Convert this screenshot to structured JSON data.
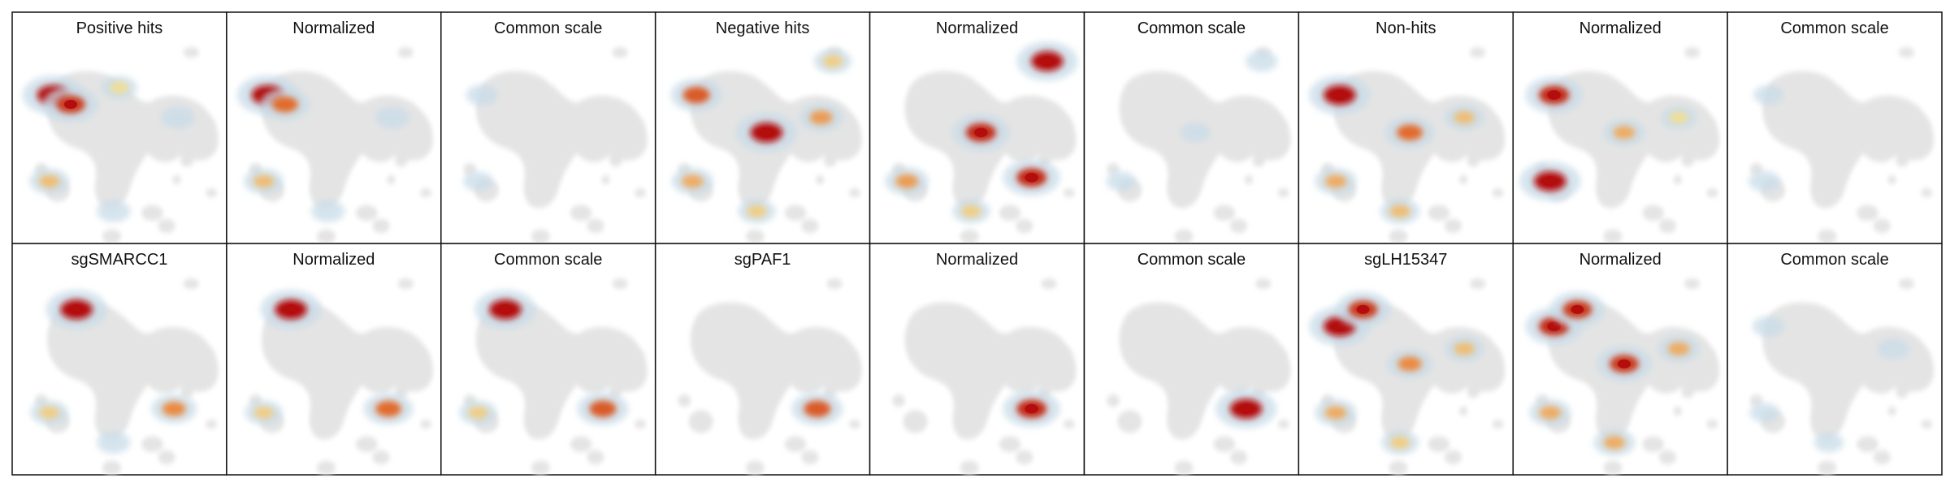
{
  "colors": {
    "background_cells": "#e4e4e4",
    "low": "#c8dbe8",
    "mid": "#f2e59a",
    "high": "#e8762f",
    "peak": "#b30d0d"
  },
  "chart_data": {
    "type": "density-embedding",
    "grid": {
      "rows": 2,
      "columns": 9
    },
    "panels": [
      {
        "title": "Positive hits",
        "hotspots": [
          {
            "region": "upper-left",
            "intensity": 1.0
          },
          {
            "region": "upper-left",
            "intensity": 0.85
          },
          {
            "region": "top-center",
            "intensity": 0.35
          },
          {
            "region": "right-loop",
            "intensity": 0.3
          },
          {
            "region": "lower-left",
            "intensity": 0.45
          },
          {
            "region": "bottom-center",
            "intensity": 0.3
          }
        ]
      },
      {
        "title": "Normalized",
        "hotspots": [
          {
            "region": "upper-left",
            "intensity": 1.0
          },
          {
            "region": "upper-left",
            "intensity": 0.7
          },
          {
            "region": "right-loop",
            "intensity": 0.3
          },
          {
            "region": "lower-left",
            "intensity": 0.45
          },
          {
            "region": "bottom-center",
            "intensity": 0.3
          }
        ]
      },
      {
        "title": "Common scale",
        "hotspots": [
          {
            "region": "upper-left",
            "intensity": 0.25
          },
          {
            "region": "lower-left",
            "intensity": 0.2
          }
        ]
      },
      {
        "title": "Negative hits",
        "hotspots": [
          {
            "region": "center",
            "intensity": 1.0
          },
          {
            "region": "upper-left",
            "intensity": 0.75
          },
          {
            "region": "right-loop",
            "intensity": 0.55
          },
          {
            "region": "top-right",
            "intensity": 0.4
          },
          {
            "region": "lower-left",
            "intensity": 0.5
          },
          {
            "region": "bottom-center",
            "intensity": 0.4
          }
        ]
      },
      {
        "title": "Normalized",
        "hotspots": [
          {
            "region": "top-right",
            "intensity": 1.0
          },
          {
            "region": "center",
            "intensity": 0.9
          },
          {
            "region": "lower-right",
            "intensity": 0.9
          },
          {
            "region": "lower-left",
            "intensity": 0.55
          },
          {
            "region": "bottom-center",
            "intensity": 0.4
          }
        ]
      },
      {
        "title": "Common scale",
        "hotspots": [
          {
            "region": "top-right",
            "intensity": 0.25
          },
          {
            "region": "center",
            "intensity": 0.2
          },
          {
            "region": "lower-left",
            "intensity": 0.2
          }
        ]
      },
      {
        "title": "Non-hits",
        "hotspots": [
          {
            "region": "upper-left",
            "intensity": 1.0
          },
          {
            "region": "center",
            "intensity": 0.7
          },
          {
            "region": "right-loop",
            "intensity": 0.45
          },
          {
            "region": "lower-left",
            "intensity": 0.5
          },
          {
            "region": "bottom-center",
            "intensity": 0.45
          }
        ]
      },
      {
        "title": "Normalized",
        "hotspots": [
          {
            "region": "lower-left",
            "intensity": 1.0
          },
          {
            "region": "upper-left",
            "intensity": 0.9
          },
          {
            "region": "center",
            "intensity": 0.5
          },
          {
            "region": "right-loop",
            "intensity": 0.35
          }
        ]
      },
      {
        "title": "Common scale",
        "hotspots": [
          {
            "region": "lower-left",
            "intensity": 0.25
          },
          {
            "region": "upper-left",
            "intensity": 0.2
          }
        ]
      },
      {
        "title": "sgSMARCC1",
        "hotspots": [
          {
            "region": "top-left-band",
            "intensity": 1.0
          },
          {
            "region": "lower-right",
            "intensity": 0.6
          },
          {
            "region": "lower-left",
            "intensity": 0.4
          },
          {
            "region": "bottom-center",
            "intensity": 0.3
          }
        ]
      },
      {
        "title": "Normalized",
        "hotspots": [
          {
            "region": "top-left-band",
            "intensity": 1.0
          },
          {
            "region": "lower-right",
            "intensity": 0.7
          },
          {
            "region": "lower-left",
            "intensity": 0.4
          }
        ]
      },
      {
        "title": "Common scale",
        "hotspots": [
          {
            "region": "top-left-band",
            "intensity": 1.0
          },
          {
            "region": "lower-right",
            "intensity": 0.75
          },
          {
            "region": "lower-left",
            "intensity": 0.4
          }
        ]
      },
      {
        "title": "sgPAF1",
        "hotspots": [
          {
            "region": "lower-right",
            "intensity": 0.75
          }
        ]
      },
      {
        "title": "Normalized",
        "hotspots": [
          {
            "region": "lower-right",
            "intensity": 0.9
          }
        ]
      },
      {
        "title": "Common scale",
        "hotspots": [
          {
            "region": "lower-right",
            "intensity": 1.0
          }
        ]
      },
      {
        "title": "sgLH15347",
        "hotspots": [
          {
            "region": "upper-left",
            "intensity": 1.0
          },
          {
            "region": "top-left-band",
            "intensity": 0.85
          },
          {
            "region": "center",
            "intensity": 0.6
          },
          {
            "region": "right-loop",
            "intensity": 0.45
          },
          {
            "region": "lower-left",
            "intensity": 0.5
          },
          {
            "region": "bottom-center",
            "intensity": 0.4
          }
        ]
      },
      {
        "title": "Normalized",
        "hotspots": [
          {
            "region": "upper-left",
            "intensity": 0.9
          },
          {
            "region": "top-left-band",
            "intensity": 0.85
          },
          {
            "region": "center",
            "intensity": 0.85
          },
          {
            "region": "right-loop",
            "intensity": 0.5
          },
          {
            "region": "lower-left",
            "intensity": 0.5
          },
          {
            "region": "bottom-center",
            "intensity": 0.5
          }
        ]
      },
      {
        "title": "Common scale",
        "hotspots": [
          {
            "region": "upper-left",
            "intensity": 0.25
          },
          {
            "region": "right-loop",
            "intensity": 0.25
          },
          {
            "region": "lower-left",
            "intensity": 0.2
          },
          {
            "region": "bottom-center",
            "intensity": 0.2
          }
        ]
      }
    ]
  }
}
